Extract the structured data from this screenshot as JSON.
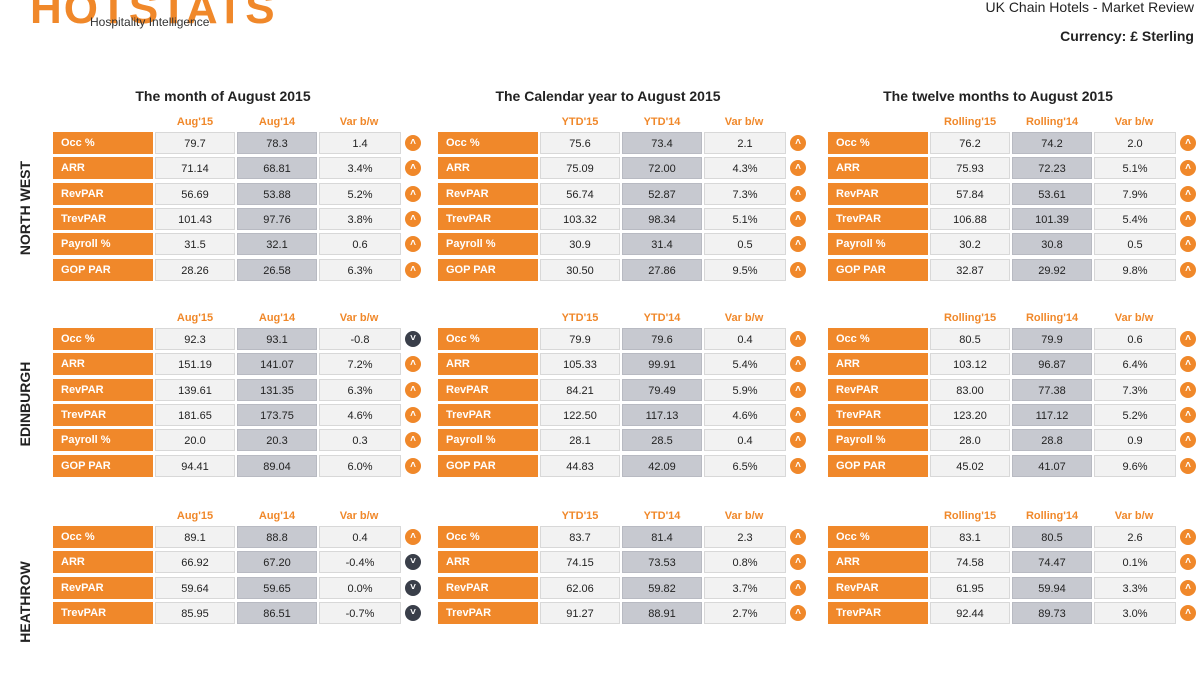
{
  "header": {
    "logo": "HOTSTATS",
    "tagline": "Hospitality Intelligence",
    "report_title": "UK Chain Hotels - Market Review",
    "currency": "Currency: £ Sterling"
  },
  "periods": [
    {
      "title": "The month of August 2015",
      "cols": [
        "Aug'15",
        "Aug'14",
        "Var b/w"
      ]
    },
    {
      "title": "The Calendar year to August 2015",
      "cols": [
        "YTD'15",
        "YTD'14",
        "Var b/w"
      ]
    },
    {
      "title": "The twelve months to August 2015",
      "cols": [
        "Rolling'15",
        "Rolling'14",
        "Var b/w"
      ]
    }
  ],
  "metrics": [
    "Occ %",
    "ARR",
    "RevPAR",
    "TrevPAR",
    "Payroll %",
    "GOP PAR"
  ],
  "colors": {
    "orange": "#f0882a",
    "dark": "#3a3f4a"
  },
  "regions": [
    {
      "name": "NORTH WEST",
      "periods": [
        {
          "rows": [
            [
              "79.7",
              "78.3",
              "1.4",
              "up"
            ],
            [
              "71.14",
              "68.81",
              "3.4%",
              "up"
            ],
            [
              "56.69",
              "53.88",
              "5.2%",
              "up"
            ],
            [
              "101.43",
              "97.76",
              "3.8%",
              "up"
            ],
            [
              "31.5",
              "32.1",
              "0.6",
              "up"
            ],
            [
              "28.26",
              "26.58",
              "6.3%",
              "up"
            ]
          ]
        },
        {
          "rows": [
            [
              "75.6",
              "73.4",
              "2.1",
              "up"
            ],
            [
              "75.09",
              "72.00",
              "4.3%",
              "up"
            ],
            [
              "56.74",
              "52.87",
              "7.3%",
              "up"
            ],
            [
              "103.32",
              "98.34",
              "5.1%",
              "up"
            ],
            [
              "30.9",
              "31.4",
              "0.5",
              "up"
            ],
            [
              "30.50",
              "27.86",
              "9.5%",
              "up"
            ]
          ]
        },
        {
          "rows": [
            [
              "76.2",
              "74.2",
              "2.0",
              "up"
            ],
            [
              "75.93",
              "72.23",
              "5.1%",
              "up"
            ],
            [
              "57.84",
              "53.61",
              "7.9%",
              "up"
            ],
            [
              "106.88",
              "101.39",
              "5.4%",
              "up"
            ],
            [
              "30.2",
              "30.8",
              "0.5",
              "up"
            ],
            [
              "32.87",
              "29.92",
              "9.8%",
              "up"
            ]
          ]
        }
      ]
    },
    {
      "name": "EDINBURGH",
      "periods": [
        {
          "rows": [
            [
              "92.3",
              "93.1",
              "-0.8",
              "down"
            ],
            [
              "151.19",
              "141.07",
              "7.2%",
              "up"
            ],
            [
              "139.61",
              "131.35",
              "6.3%",
              "up"
            ],
            [
              "181.65",
              "173.75",
              "4.6%",
              "up"
            ],
            [
              "20.0",
              "20.3",
              "0.3",
              "up"
            ],
            [
              "94.41",
              "89.04",
              "6.0%",
              "up"
            ]
          ]
        },
        {
          "rows": [
            [
              "79.9",
              "79.6",
              "0.4",
              "up"
            ],
            [
              "105.33",
              "99.91",
              "5.4%",
              "up"
            ],
            [
              "84.21",
              "79.49",
              "5.9%",
              "up"
            ],
            [
              "122.50",
              "117.13",
              "4.6%",
              "up"
            ],
            [
              "28.1",
              "28.5",
              "0.4",
              "up"
            ],
            [
              "44.83",
              "42.09",
              "6.5%",
              "up"
            ]
          ]
        },
        {
          "rows": [
            [
              "80.5",
              "79.9",
              "0.6",
              "up"
            ],
            [
              "103.12",
              "96.87",
              "6.4%",
              "up"
            ],
            [
              "83.00",
              "77.38",
              "7.3%",
              "up"
            ],
            [
              "123.20",
              "117.12",
              "5.2%",
              "up"
            ],
            [
              "28.0",
              "28.8",
              "0.9",
              "up"
            ],
            [
              "45.02",
              "41.07",
              "9.6%",
              "up"
            ]
          ]
        }
      ]
    },
    {
      "name": "HEATHROW",
      "periods": [
        {
          "rows": [
            [
              "89.1",
              "88.8",
              "0.4",
              "up"
            ],
            [
              "66.92",
              "67.20",
              "-0.4%",
              "down"
            ],
            [
              "59.64",
              "59.65",
              "0.0%",
              "down"
            ],
            [
              "85.95",
              "86.51",
              "-0.7%",
              "down"
            ]
          ]
        },
        {
          "rows": [
            [
              "83.7",
              "81.4",
              "2.3",
              "up"
            ],
            [
              "74.15",
              "73.53",
              "0.8%",
              "up"
            ],
            [
              "62.06",
              "59.82",
              "3.7%",
              "up"
            ],
            [
              "91.27",
              "88.91",
              "2.7%",
              "up"
            ]
          ]
        },
        {
          "rows": [
            [
              "83.1",
              "80.5",
              "2.6",
              "up"
            ],
            [
              "74.58",
              "74.47",
              "0.1%",
              "up"
            ],
            [
              "61.95",
              "59.94",
              "3.3%",
              "up"
            ],
            [
              "92.44",
              "89.73",
              "3.0%",
              "up"
            ]
          ]
        }
      ]
    }
  ]
}
